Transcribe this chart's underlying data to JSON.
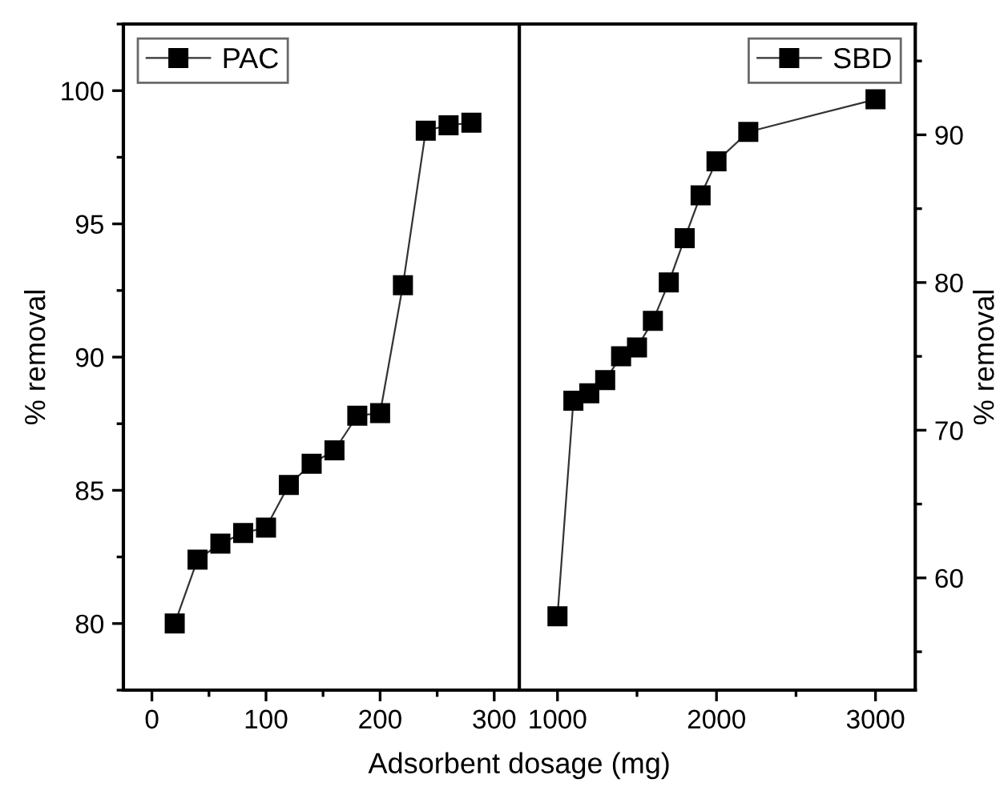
{
  "chart_data": [
    {
      "type": "line",
      "xlabel": "Adsorbent dosage (mg)",
      "ylabel": "% removal",
      "x": [
        20,
        40,
        60,
        80,
        100,
        120,
        140,
        160,
        180,
        200,
        220,
        240,
        260,
        280
      ],
      "series": [
        {
          "name": "PAC",
          "color": "#000000",
          "values": [
            80.0,
            82.4,
            83.0,
            83.4,
            83.6,
            85.2,
            86.0,
            86.5,
            87.8,
            87.9,
            92.7,
            98.5,
            98.7,
            98.8
          ]
        }
      ],
      "xlim": [
        -25,
        322
      ],
      "xticks": [
        0,
        100,
        200,
        300
      ],
      "ylim": [
        77.5,
        102.5
      ],
      "yticks": [
        80,
        85,
        90,
        95,
        100
      ],
      "marker": "square",
      "line_style": "solid",
      "grid": false,
      "legend": "top left"
    },
    {
      "type": "line",
      "ylabel": "% removal",
      "x": [
        1000,
        1100,
        1200,
        1300,
        1400,
        1500,
        1600,
        1700,
        1800,
        1900,
        2000,
        2200,
        3000
      ],
      "series": [
        {
          "name": "SBD",
          "color": "#000000",
          "values": [
            57.4,
            72.0,
            72.5,
            73.4,
            75.0,
            75.6,
            77.4,
            80.0,
            83.0,
            85.9,
            88.2,
            90.2,
            92.4
          ]
        }
      ],
      "xlim": [
        760,
        3250
      ],
      "xticks": [
        1000,
        2000,
        3000
      ],
      "ylim": [
        52.4,
        97.5
      ],
      "yticks": [
        60,
        70,
        80,
        90
      ],
      "marker": "square",
      "line_style": "solid",
      "grid": false,
      "legend": "top right"
    }
  ]
}
